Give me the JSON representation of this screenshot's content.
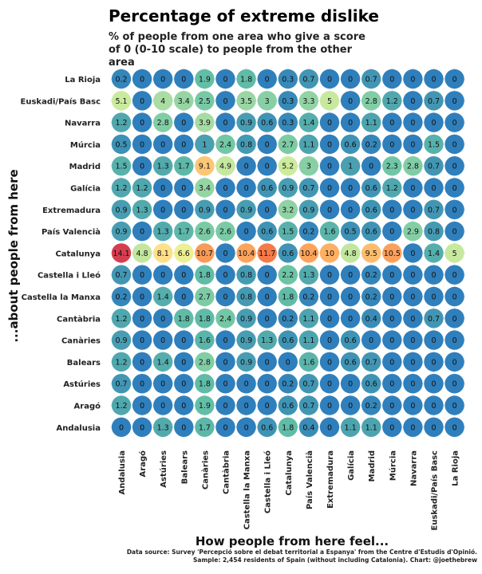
{
  "chart_data": {
    "type": "heatmap",
    "title": "Percentage of extreme dislike",
    "subtitle": "% of people from one area who give a score of 0 (0-10 scale) to people from the other area",
    "xlabel": "How people from here feel...",
    "ylabel": "...about people from here",
    "caption_line1": "Data source: Survey 'Percepció sobre el debat territorial a Espanya' from the Centre d'Estudis d'Opinió.",
    "caption_line2": "Sample: 2,454 residents of Spain (without including Catalonia). Chart: @joethebrew",
    "x_categories": [
      "Andalusia",
      "Aragó",
      "Astúries",
      "Balears",
      "Canàries",
      "Cantàbria",
      "Castella la Manxa",
      "Castella i Lleó",
      "Catalunya",
      "País Valencià",
      "Extremadura",
      "Galícia",
      "Madrid",
      "Múrcia",
      "Navarra",
      "Euskadi/País Basc",
      "La Rioja"
    ],
    "y_categories": [
      "La Rioja",
      "Euskadi/País Basc",
      "Navarra",
      "Múrcia",
      "Madrid",
      "Galícia",
      "Extremadura",
      "País Valencià",
      "Catalunya",
      "Castella i Lleó",
      "Castella la Manxa",
      "Cantàbria",
      "Canàries",
      "Balears",
      "Astúries",
      "Aragó",
      "Andalusia"
    ],
    "values": [
      [
        "0.2",
        "0",
        "0",
        "0",
        "1.9",
        "0",
        "1.8",
        "0",
        "0.3",
        "0.7",
        "0",
        "0",
        "0.7",
        "0",
        "0",
        "0",
        "0"
      ],
      [
        "5.1",
        "0",
        "4",
        "3.4",
        "2.5",
        "0",
        "3.5",
        "3",
        "0.3",
        "3.3",
        "5",
        "0",
        "2.8",
        "1.2",
        "0",
        "0.7",
        "0"
      ],
      [
        "1.2",
        "0",
        "2.8",
        "0",
        "3.9",
        "0",
        "0.9",
        "0.6",
        "0.3",
        "1.4",
        "0",
        "0",
        "1.1",
        "0",
        "0",
        "0",
        "0"
      ],
      [
        "0.5",
        "0",
        "0",
        "0",
        "1",
        "2.4",
        "0.8",
        "0",
        "2.7",
        "1.1",
        "0",
        "0.6",
        "0.2",
        "0",
        "0",
        "1.5",
        "0"
      ],
      [
        "1.5",
        "0",
        "1.3",
        "1.7",
        "9.1",
        "4.9",
        "0",
        "0",
        "5.2",
        "3",
        "0",
        "1",
        "0",
        "2.3",
        "2.8",
        "0.7",
        "0"
      ],
      [
        "1.2",
        "1.2",
        "0",
        "0",
        "3.4",
        "0",
        "0",
        "0.6",
        "0.9",
        "0.7",
        "0",
        "0",
        "0.6",
        "1.2",
        "0",
        "0",
        "0"
      ],
      [
        "0.9",
        "1.3",
        "0",
        "0",
        "0.9",
        "0",
        "0.9",
        "0",
        "3.2",
        "0.9",
        "0",
        "0",
        "0.6",
        "0",
        "0",
        "0.7",
        "0"
      ],
      [
        "0.9",
        "0",
        "1.3",
        "1.7",
        "2.6",
        "2.6",
        "0",
        "0.6",
        "1.5",
        "0.2",
        "1.6",
        "0.5",
        "0.6",
        "0",
        "2.9",
        "0.8",
        "0"
      ],
      [
        "14.1",
        "4.8",
        "8.1",
        "6.6",
        "10.7",
        "0",
        "10.4",
        "11.7",
        "0.6",
        "10.4",
        "10",
        "4.8",
        "9.5",
        "10.5",
        "0",
        "1.4",
        "5"
      ],
      [
        "0.7",
        "0",
        "0",
        "0",
        "1.8",
        "0",
        "0.8",
        "0",
        "2.2",
        "1.3",
        "0",
        "0",
        "0.2",
        "0",
        "0",
        "0",
        "0"
      ],
      [
        "0.2",
        "0",
        "1.4",
        "0",
        "2.7",
        "0",
        "0.8",
        "0",
        "1.8",
        "0.2",
        "0",
        "0",
        "0.2",
        "0",
        "0",
        "0",
        "0"
      ],
      [
        "1.2",
        "0",
        "0",
        "1.8",
        "1.8",
        "2.4",
        "0.9",
        "0",
        "0.2",
        "1.1",
        "0",
        "0",
        "0.4",
        "0",
        "0",
        "0.7",
        "0"
      ],
      [
        "0.9",
        "0",
        "0",
        "0",
        "1.6",
        "0",
        "0.9",
        "1.3",
        "0.6",
        "1.1",
        "0",
        "0.6",
        "0",
        "0",
        "0",
        "0",
        "0"
      ],
      [
        "1.2",
        "0",
        "1.4",
        "0",
        "2.8",
        "0",
        "0.9",
        "0",
        "0",
        "1.6",
        "0",
        "0.6",
        "0.7",
        "0",
        "0",
        "0",
        "0"
      ],
      [
        "0.7",
        "0",
        "0",
        "0",
        "1.8",
        "0",
        "0",
        "0",
        "0.2",
        "0.7",
        "0",
        "0",
        "0.6",
        "0",
        "0",
        "0",
        "0"
      ],
      [
        "1.2",
        "0",
        "0",
        "0",
        "1.9",
        "0",
        "0",
        "0",
        "0.6",
        "0.7",
        "0",
        "0",
        "0.2",
        "0",
        "0",
        "0",
        "0"
      ],
      [
        "0",
        "0",
        "1.3",
        "0",
        "1.7",
        "0",
        "0",
        "0.6",
        "1.8",
        "0.4",
        "0",
        "1.1",
        "1.1",
        "0",
        "0",
        "0",
        "0"
      ]
    ],
    "color_scale": [
      "#2f7fbc",
      "#66c2a5",
      "#abdda4",
      "#e6f598",
      "#fee08b",
      "#fdae61",
      "#f46d43",
      "#d53e4f"
    ]
  }
}
